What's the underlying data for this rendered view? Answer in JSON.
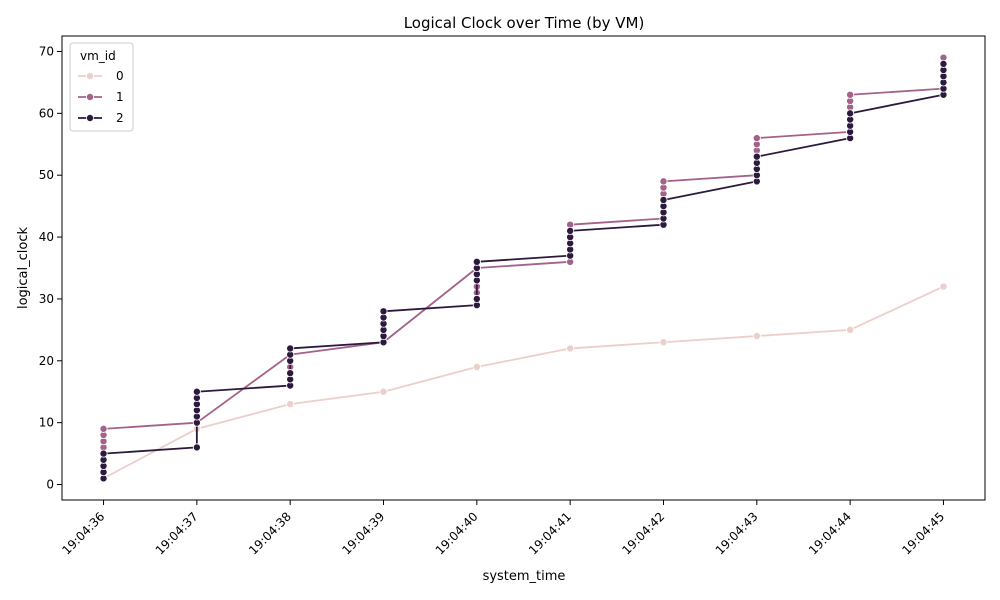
{
  "chart_data": {
    "type": "line",
    "title": "Logical Clock over Time (by VM)",
    "xlabel": "system_time",
    "ylabel": "logical_clock",
    "x_ticks": [
      "19:04:36",
      "19:04:37",
      "19:04:38",
      "19:04:39",
      "19:04:40",
      "19:04:41",
      "19:04:42",
      "19:04:43",
      "19:04:44",
      "19:04:45"
    ],
    "y_ticks": [
      0,
      10,
      20,
      30,
      40,
      50,
      60,
      70
    ],
    "ylim": [
      -2.5,
      72.5
    ],
    "grid": false,
    "legend": {
      "title": "vm_id",
      "placement": "top-left"
    },
    "series": [
      {
        "name": "0",
        "color": "#ebcfc9",
        "points": [
          [
            0,
            1
          ],
          [
            1,
            9
          ],
          [
            2,
            13
          ],
          [
            3,
            15
          ],
          [
            4,
            19
          ],
          [
            5,
            22
          ],
          [
            6,
            23
          ],
          [
            7,
            24
          ],
          [
            8,
            25
          ],
          [
            9,
            32
          ]
        ],
        "markers": [
          [
            0,
            1
          ],
          [
            1,
            9
          ],
          [
            2,
            13
          ],
          [
            3,
            15
          ],
          [
            4,
            19
          ],
          [
            5,
            22
          ],
          [
            6,
            23
          ],
          [
            7,
            24
          ],
          [
            8,
            25
          ],
          [
            9,
            32
          ]
        ]
      },
      {
        "name": "1",
        "color": "#a4628a",
        "points": [
          [
            0,
            9
          ],
          [
            1,
            10
          ],
          [
            2,
            21
          ],
          [
            3,
            23
          ],
          [
            4,
            35
          ],
          [
            5,
            36
          ],
          [
            5,
            42
          ],
          [
            6,
            43
          ],
          [
            6,
            49
          ],
          [
            7,
            50
          ],
          [
            7,
            56
          ],
          [
            8,
            57
          ],
          [
            8,
            63
          ],
          [
            9,
            64
          ]
        ],
        "markers": [
          [
            0,
            1
          ],
          [
            0,
            2
          ],
          [
            0,
            3
          ],
          [
            0,
            4
          ],
          [
            0,
            5
          ],
          [
            0,
            6
          ],
          [
            0,
            7
          ],
          [
            0,
            8
          ],
          [
            0,
            9
          ],
          [
            1,
            10
          ],
          [
            2,
            16
          ],
          [
            2,
            17
          ],
          [
            2,
            18
          ],
          [
            2,
            19
          ],
          [
            2,
            20
          ],
          [
            2,
            21
          ],
          [
            3,
            23
          ],
          [
            4,
            29
          ],
          [
            4,
            30
          ],
          [
            4,
            31
          ],
          [
            4,
            32
          ],
          [
            4,
            33
          ],
          [
            4,
            34
          ],
          [
            4,
            35
          ],
          [
            5,
            36
          ],
          [
            5,
            42
          ],
          [
            6,
            43
          ],
          [
            6,
            44
          ],
          [
            6,
            45
          ],
          [
            6,
            46
          ],
          [
            6,
            47
          ],
          [
            6,
            48
          ],
          [
            6,
            49
          ],
          [
            7,
            50
          ],
          [
            7,
            51
          ],
          [
            7,
            52
          ],
          [
            7,
            53
          ],
          [
            7,
            54
          ],
          [
            7,
            55
          ],
          [
            7,
            56
          ],
          [
            8,
            57
          ],
          [
            8,
            58
          ],
          [
            8,
            59
          ],
          [
            8,
            60
          ],
          [
            8,
            61
          ],
          [
            8,
            62
          ],
          [
            8,
            63
          ],
          [
            9,
            64
          ],
          [
            9,
            65
          ],
          [
            9,
            66
          ],
          [
            9,
            67
          ],
          [
            9,
            68
          ],
          [
            9,
            69
          ]
        ]
      },
      {
        "name": "2",
        "color": "#2c1a3e",
        "points": [
          [
            0,
            5
          ],
          [
            1,
            6
          ],
          [
            1,
            15
          ],
          [
            2,
            16
          ],
          [
            2,
            22
          ],
          [
            3,
            23
          ],
          [
            3,
            28
          ],
          [
            4,
            29
          ],
          [
            4,
            36
          ],
          [
            5,
            37
          ],
          [
            5,
            41
          ],
          [
            6,
            42
          ],
          [
            6,
            46
          ],
          [
            7,
            49
          ],
          [
            7,
            53
          ],
          [
            8,
            56
          ],
          [
            8,
            60
          ],
          [
            9,
            63
          ]
        ],
        "markers": [
          [
            0,
            1
          ],
          [
            0,
            2
          ],
          [
            0,
            3
          ],
          [
            0,
            4
          ],
          [
            0,
            5
          ],
          [
            1,
            6
          ],
          [
            1,
            10
          ],
          [
            1,
            11
          ],
          [
            1,
            12
          ],
          [
            1,
            13
          ],
          [
            1,
            14
          ],
          [
            1,
            15
          ],
          [
            2,
            16
          ],
          [
            2,
            17
          ],
          [
            2,
            18
          ],
          [
            2,
            20
          ],
          [
            2,
            21
          ],
          [
            2,
            22
          ],
          [
            3,
            23
          ],
          [
            3,
            24
          ],
          [
            3,
            25
          ],
          [
            3,
            26
          ],
          [
            3,
            27
          ],
          [
            3,
            28
          ],
          [
            4,
            29
          ],
          [
            4,
            30
          ],
          [
            4,
            33
          ],
          [
            4,
            34
          ],
          [
            4,
            35
          ],
          [
            4,
            36
          ],
          [
            5,
            37
          ],
          [
            5,
            38
          ],
          [
            5,
            39
          ],
          [
            5,
            40
          ],
          [
            5,
            41
          ],
          [
            6,
            42
          ],
          [
            6,
            43
          ],
          [
            6,
            44
          ],
          [
            6,
            45
          ],
          [
            6,
            46
          ],
          [
            7,
            49
          ],
          [
            7,
            50
          ],
          [
            7,
            51
          ],
          [
            7,
            52
          ],
          [
            7,
            53
          ],
          [
            8,
            56
          ],
          [
            8,
            57
          ],
          [
            8,
            58
          ],
          [
            8,
            59
          ],
          [
            8,
            60
          ],
          [
            9,
            63
          ],
          [
            9,
            64
          ],
          [
            9,
            65
          ],
          [
            9,
            66
          ],
          [
            9,
            67
          ],
          [
            9,
            68
          ]
        ]
      }
    ]
  }
}
